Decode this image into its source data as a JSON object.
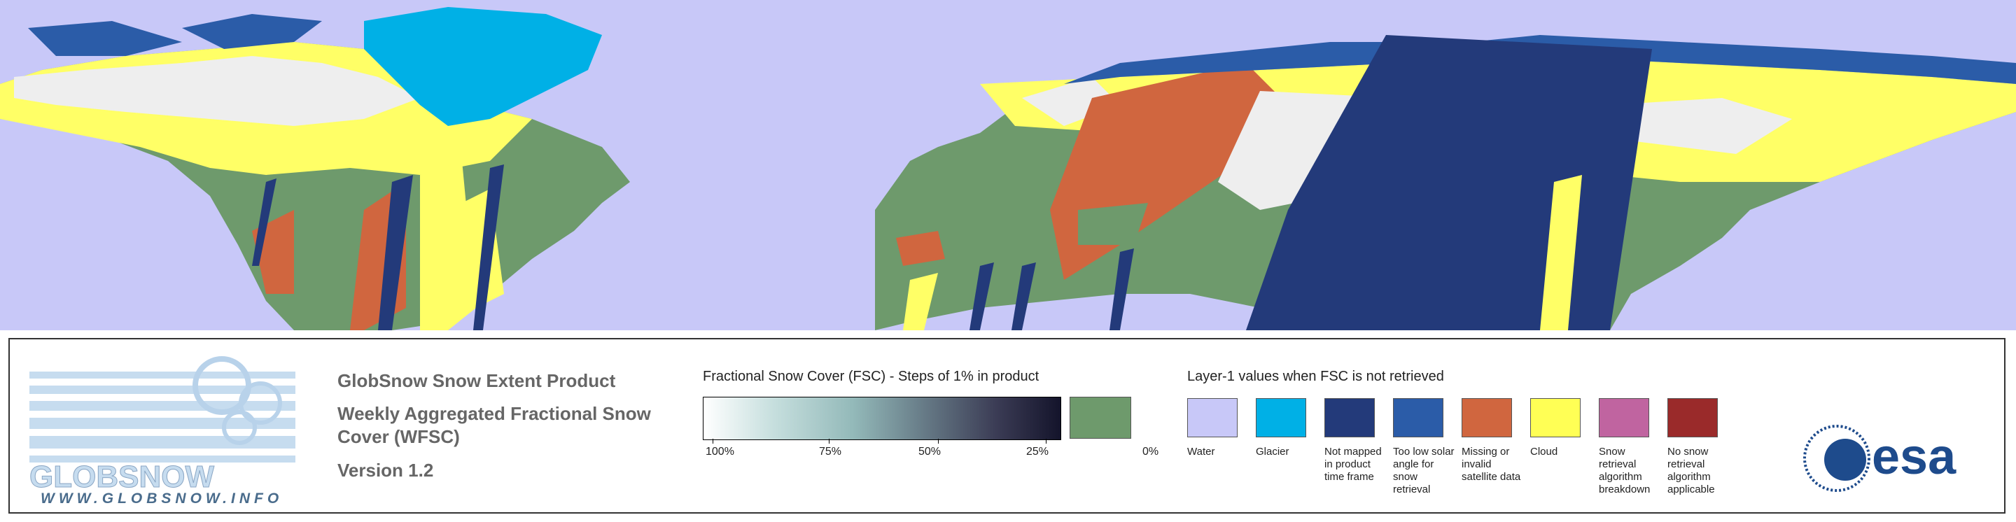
{
  "panel": {
    "logo": {
      "wordmark": "GLOBSNOW",
      "url": "WWW.GLOBSNOW.INFO"
    },
    "product_title": "GlobSnow Snow Extent Product",
    "product_subtitle": "Weekly Aggregated Fractional Snow Cover (WFSC)",
    "version": "Version 1.2",
    "fsc_legend": {
      "label": "Fractional Snow Cover (FSC) - Steps of 1% in product",
      "ticks": [
        "100%",
        "75%",
        "50%",
        "25%",
        "0%"
      ],
      "zero_color": "#6e9a6c"
    },
    "layer1_legend": {
      "label": "Layer-1 values when FSC is not retrieved",
      "items": [
        {
          "label": "Water",
          "color": "#c8c8f8"
        },
        {
          "label": "Glacier",
          "color": "#00b0e6"
        },
        {
          "label": "Not mapped in product time frame",
          "color": "#233a7a"
        },
        {
          "label": "Too low solar angle for snow retrieval",
          "color": "#2b5ca8"
        },
        {
          "label": "Missing or invalid satellite data",
          "color": "#d0663f"
        },
        {
          "label": "Cloud",
          "color": "#ffff55"
        },
        {
          "label": "Snow retrieval algorithm breakdown",
          "color": "#c064a0"
        },
        {
          "label": "No snow retrieval algorithm applicable",
          "color": "#9a2a2a"
        }
      ]
    },
    "esa_logo": "esa"
  }
}
